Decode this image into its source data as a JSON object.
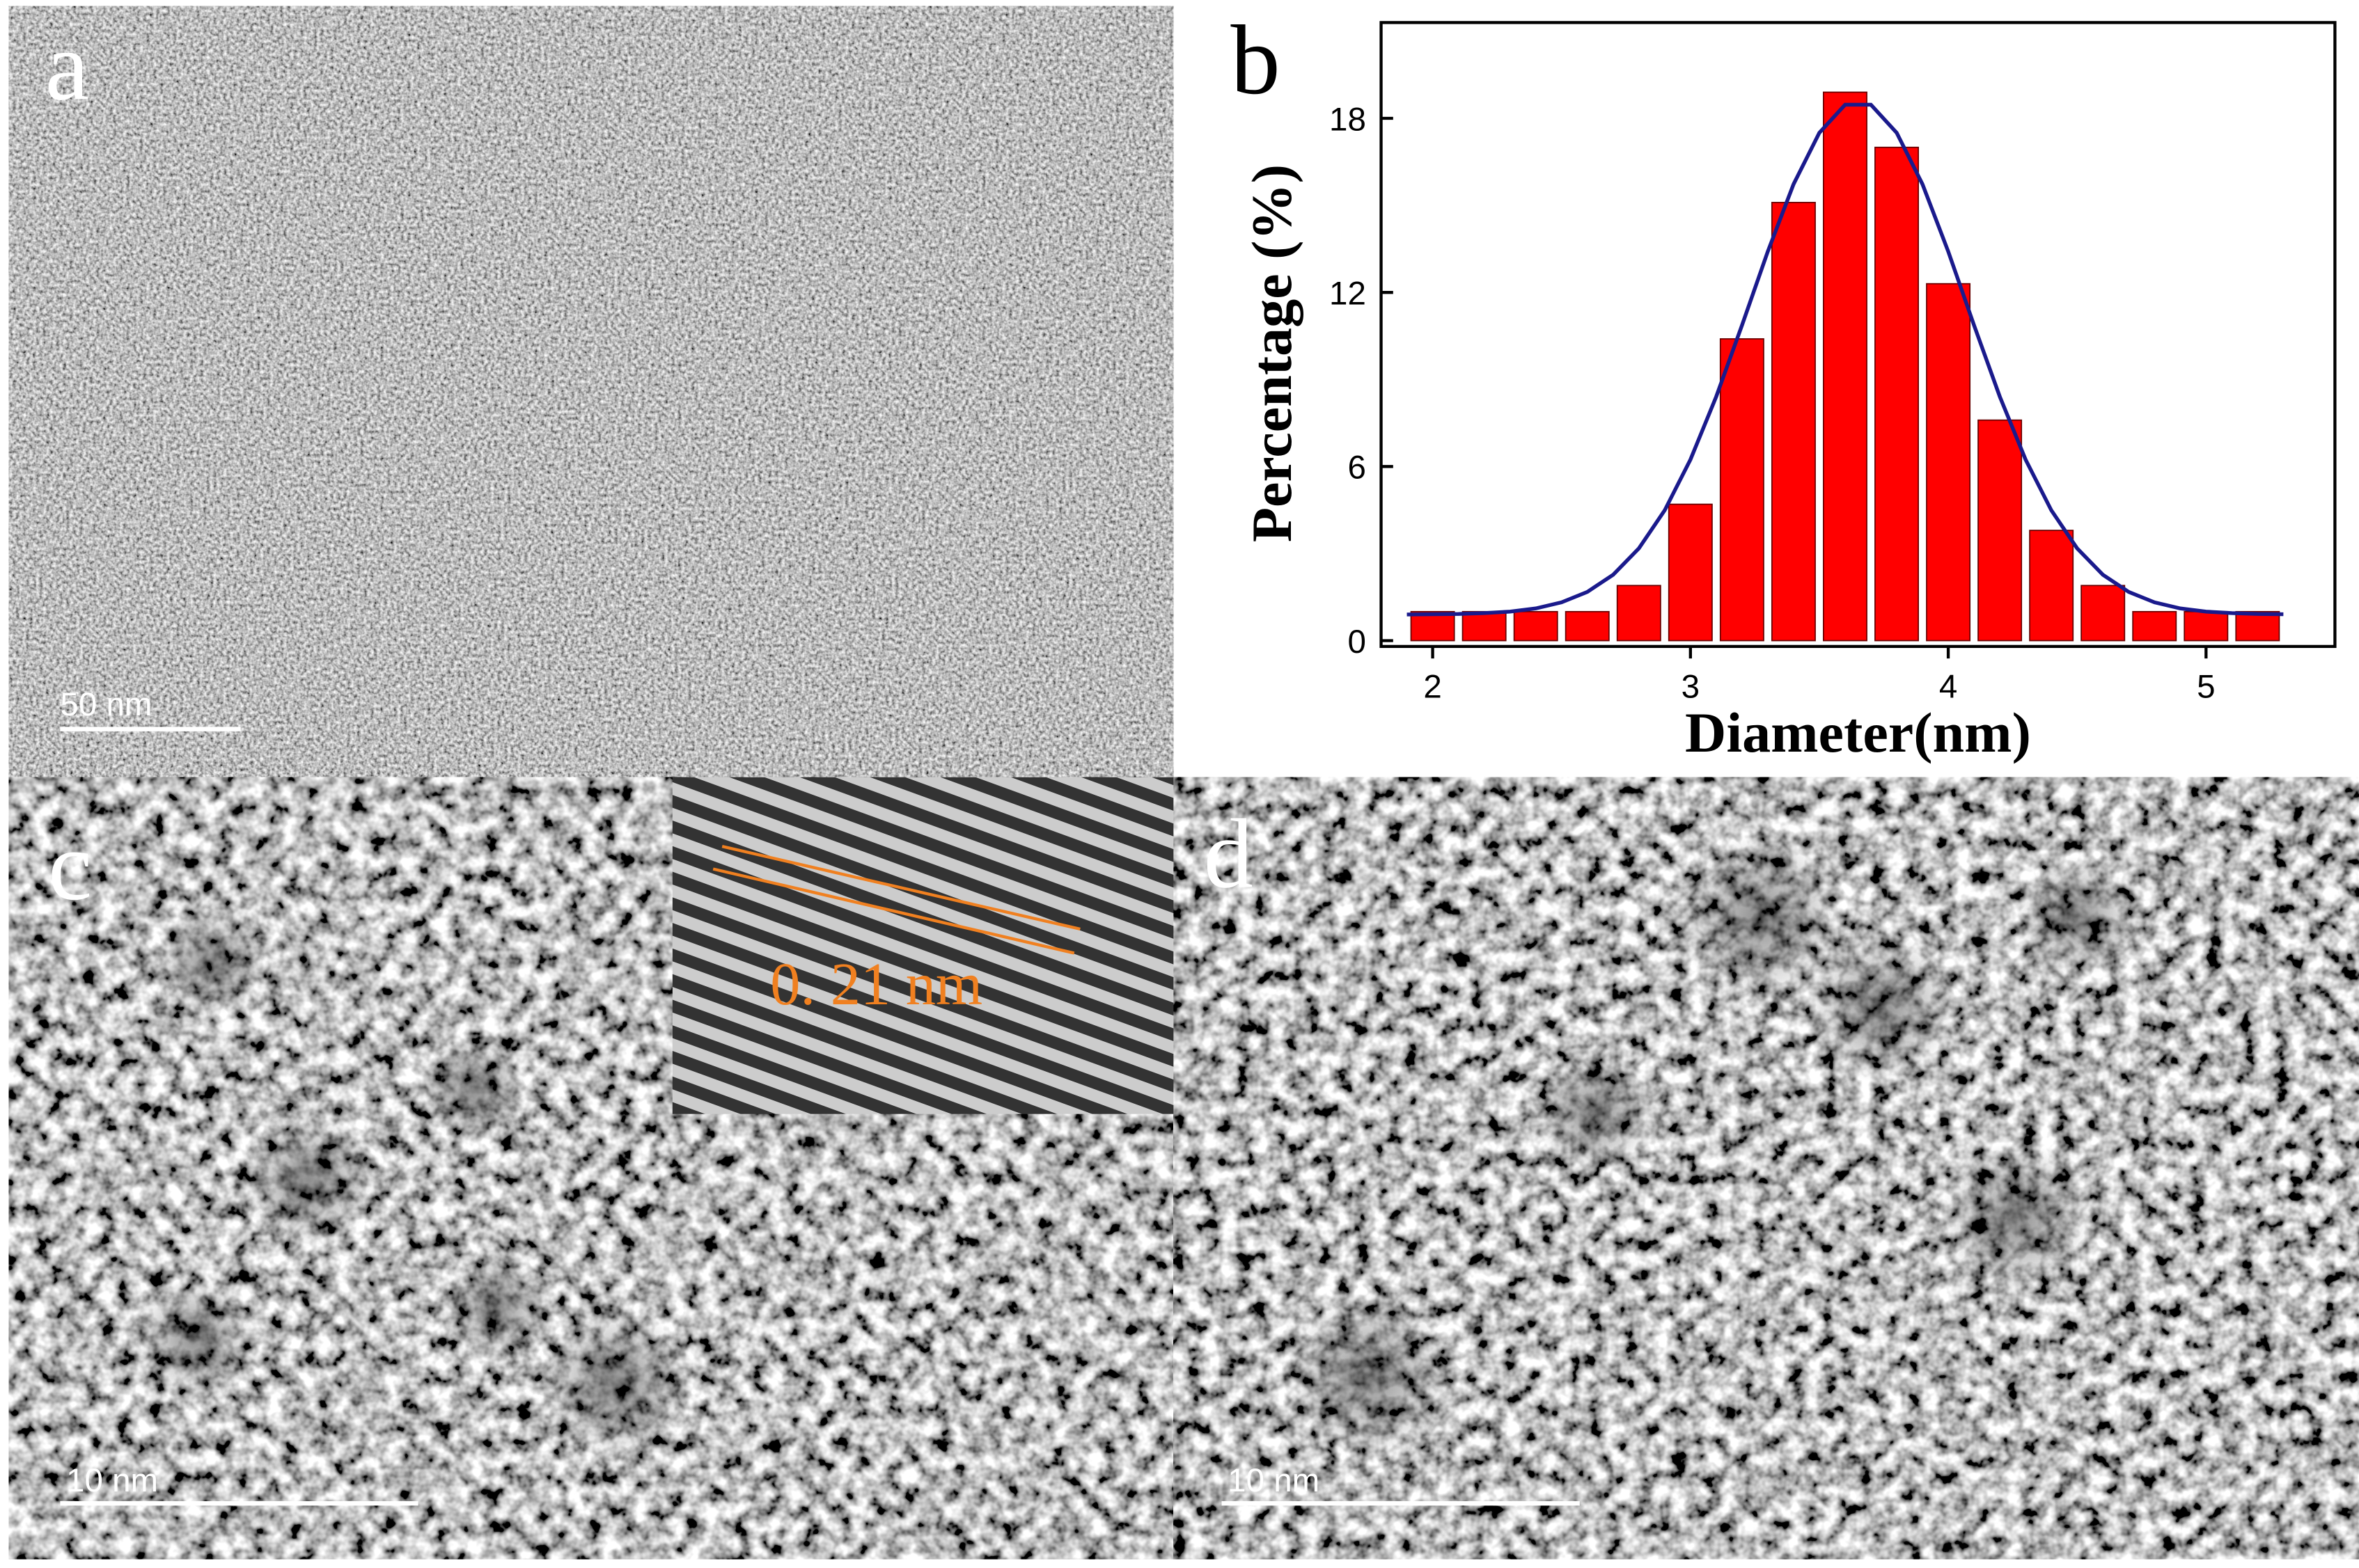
{
  "panels": {
    "a": {
      "label": "a",
      "scale_bar": "50 nm"
    },
    "b": {
      "label": "b"
    },
    "c": {
      "label": "c",
      "scale_bar": "10 nm",
      "inset_annotation": "0. 21  nm"
    },
    "d": {
      "label": "d",
      "scale_bar": "10 nm"
    }
  },
  "chart_data": {
    "type": "histogram",
    "x_label": "Diameter(nm)",
    "y_label": "Percentage (%)",
    "bins": [
      1.9,
      2.1,
      2.3,
      2.5,
      2.7,
      2.9,
      3.1,
      3.3,
      3.5,
      3.7,
      3.9,
      4.1,
      4.3,
      4.5,
      4.7,
      4.9,
      5.1,
      5.3
    ],
    "values": [
      1.0,
      1.0,
      1.0,
      1.0,
      1.9,
      4.7,
      10.4,
      15.1,
      18.9,
      17.0,
      12.3,
      7.6,
      3.8,
      1.9,
      1.0,
      1.0,
      1.0
    ],
    "color": "#ff0000",
    "fit": {
      "color": "#1a1a8c",
      "x": [
        1.9,
        2.0,
        2.1,
        2.2,
        2.3,
        2.4,
        2.5,
        2.6,
        2.7,
        2.8,
        2.9,
        3.0,
        3.1,
        3.2,
        3.3,
        3.4,
        3.5,
        3.6,
        3.7,
        3.8,
        3.9,
        4.0,
        4.1,
        4.2,
        4.3,
        4.4,
        4.5,
        4.6,
        4.7,
        4.8,
        4.9,
        5.0,
        5.1,
        5.2,
        5.3
      ],
      "values": [
        0.9,
        0.91,
        0.92,
        0.95,
        1.0,
        1.11,
        1.32,
        1.68,
        2.27,
        3.18,
        4.49,
        6.24,
        8.41,
        10.87,
        13.41,
        15.73,
        17.5,
        18.47,
        18.47,
        17.5,
        15.73,
        13.41,
        10.87,
        8.41,
        6.24,
        4.49,
        3.18,
        2.27,
        1.68,
        1.32,
        1.11,
        1.0,
        0.95,
        0.92,
        0.91
      ]
    },
    "xlim": [
      1.8,
      5.5
    ],
    "ylim": [
      -0.2,
      21.3
    ],
    "xticks": [
      2,
      3,
      4,
      5
    ],
    "yticks": [
      0,
      6,
      12,
      18
    ]
  }
}
